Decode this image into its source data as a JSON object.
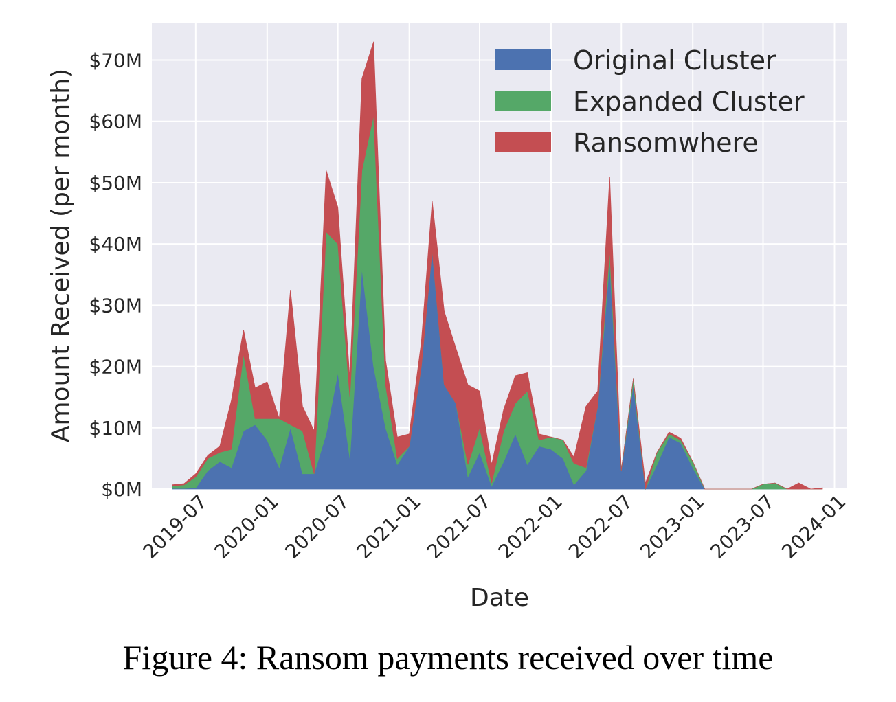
{
  "caption": "Figure 4: Ransom payments received over time",
  "chart_data": {
    "type": "area",
    "stacked": true,
    "xlabel": "Date",
    "ylabel": "Amount Received (per month)",
    "ylim": [
      0,
      76
    ],
    "xlim": [
      "2019-03-10",
      "2024-02-01"
    ],
    "y_ticks": [
      0,
      10,
      20,
      30,
      40,
      50,
      60,
      70
    ],
    "y_tick_labels": [
      "$0M",
      "$10M",
      "$20M",
      "$30M",
      "$40M",
      "$50M",
      "$60M",
      "$70M"
    ],
    "x_ticks": [
      "2019-07-01",
      "2020-01-01",
      "2020-07-01",
      "2021-01-01",
      "2021-07-01",
      "2022-01-01",
      "2022-07-01",
      "2023-01-01",
      "2023-07-01",
      "2024-01-01"
    ],
    "x_tick_labels": [
      "2019-07",
      "2020-01",
      "2020-07",
      "2021-01",
      "2021-07",
      "2022-01",
      "2022-07",
      "2023-01",
      "2023-07",
      "2024-01"
    ],
    "grid": true,
    "legend_position": "top-right",
    "colors": {
      "background": "#eaeaf2",
      "grid": "#ffffff",
      "original": "#4c72b0",
      "expanded": "#55a868",
      "ransomwhere": "#c44e52"
    },
    "x": [
      "2019-05-01",
      "2019-06-01",
      "2019-07-01",
      "2019-08-01",
      "2019-09-01",
      "2019-10-01",
      "2019-11-01",
      "2019-12-01",
      "2020-01-01",
      "2020-02-01",
      "2020-03-01",
      "2020-04-01",
      "2020-05-01",
      "2020-06-01",
      "2020-07-01",
      "2020-08-01",
      "2020-09-01",
      "2020-10-01",
      "2020-11-01",
      "2020-12-01",
      "2021-01-01",
      "2021-02-01",
      "2021-03-01",
      "2021-04-01",
      "2021-05-01",
      "2021-06-01",
      "2021-07-01",
      "2021-08-01",
      "2021-09-01",
      "2021-10-01",
      "2021-11-01",
      "2021-12-01",
      "2022-01-01",
      "2022-02-01",
      "2022-03-01",
      "2022-04-01",
      "2022-05-01",
      "2022-06-01",
      "2022-07-01",
      "2022-08-01",
      "2022-09-01",
      "2022-10-01",
      "2022-11-01",
      "2022-12-01",
      "2023-01-01",
      "2023-02-01",
      "2023-03-01",
      "2023-04-01",
      "2023-05-01",
      "2023-06-01",
      "2023-07-01",
      "2023-08-01",
      "2023-09-01",
      "2023-10-01",
      "2023-11-01",
      "2023-12-01"
    ],
    "series": [
      {
        "name": "Original Cluster",
        "values": [
          0.1,
          0.1,
          0.2,
          3.0,
          4.5,
          3.5,
          9.5,
          10.5,
          8.0,
          3.5,
          10.0,
          2.5,
          2.5,
          9.0,
          19.0,
          5.0,
          36.0,
          20.0,
          10.0,
          4.0,
          7.0,
          20.0,
          39.0,
          17.0,
          14.0,
          2.0,
          6.0,
          0.5,
          4.5,
          9.0,
          4.0,
          7.0,
          6.5,
          5.0,
          0.7,
          3.0,
          13.5,
          37.0,
          3.0,
          17.0,
          0.0,
          4.0,
          8.5,
          7.5,
          3.5,
          0.0,
          0.0,
          0.0,
          0.0,
          0.0,
          0.0,
          0.0,
          0.0,
          0.0,
          0.0,
          0.0
        ]
      },
      {
        "name": "Expanded Cluster",
        "values": [
          0.4,
          0.6,
          1.8,
          2.0,
          1.5,
          3.0,
          12.5,
          1.0,
          3.5,
          8.0,
          0.5,
          7.0,
          0.0,
          33.0,
          21.0,
          10.0,
          16.0,
          41.0,
          7.0,
          1.0,
          0.0,
          0.0,
          0.0,
          0.0,
          0.0,
          2.0,
          4.0,
          0.5,
          5.0,
          5.0,
          12.0,
          1.0,
          2.0,
          3.0,
          3.5,
          0.5,
          0.0,
          2.0,
          0.0,
          1.0,
          0.0,
          2.0,
          0.5,
          0.5,
          1.0,
          0.0,
          0.0,
          0.0,
          0.0,
          0.0,
          0.8,
          1.0,
          0.0,
          0.0,
          0.0,
          0.0
        ]
      },
      {
        "name": "Ransomwhere",
        "values": [
          0.2,
          0.2,
          0.5,
          0.5,
          1.0,
          8.0,
          4.0,
          5.0,
          6.0,
          0.0,
          22.0,
          4.0,
          7.0,
          10.0,
          6.0,
          3.0,
          15.0,
          12.0,
          4.0,
          3.5,
          2.0,
          4.0,
          8.0,
          12.0,
          9.0,
          13.0,
          6.0,
          3.0,
          3.5,
          4.5,
          3.0,
          1.0,
          0.0,
          0.0,
          1.0,
          10.0,
          2.5,
          12.0,
          0.0,
          0.0,
          1.0,
          0.0,
          0.3,
          0.3,
          0.0,
          0.0,
          0.0,
          0.0,
          0.0,
          0.0,
          0.0,
          0.0,
          0.0,
          1.0,
          0.0,
          0.2
        ]
      }
    ]
  }
}
